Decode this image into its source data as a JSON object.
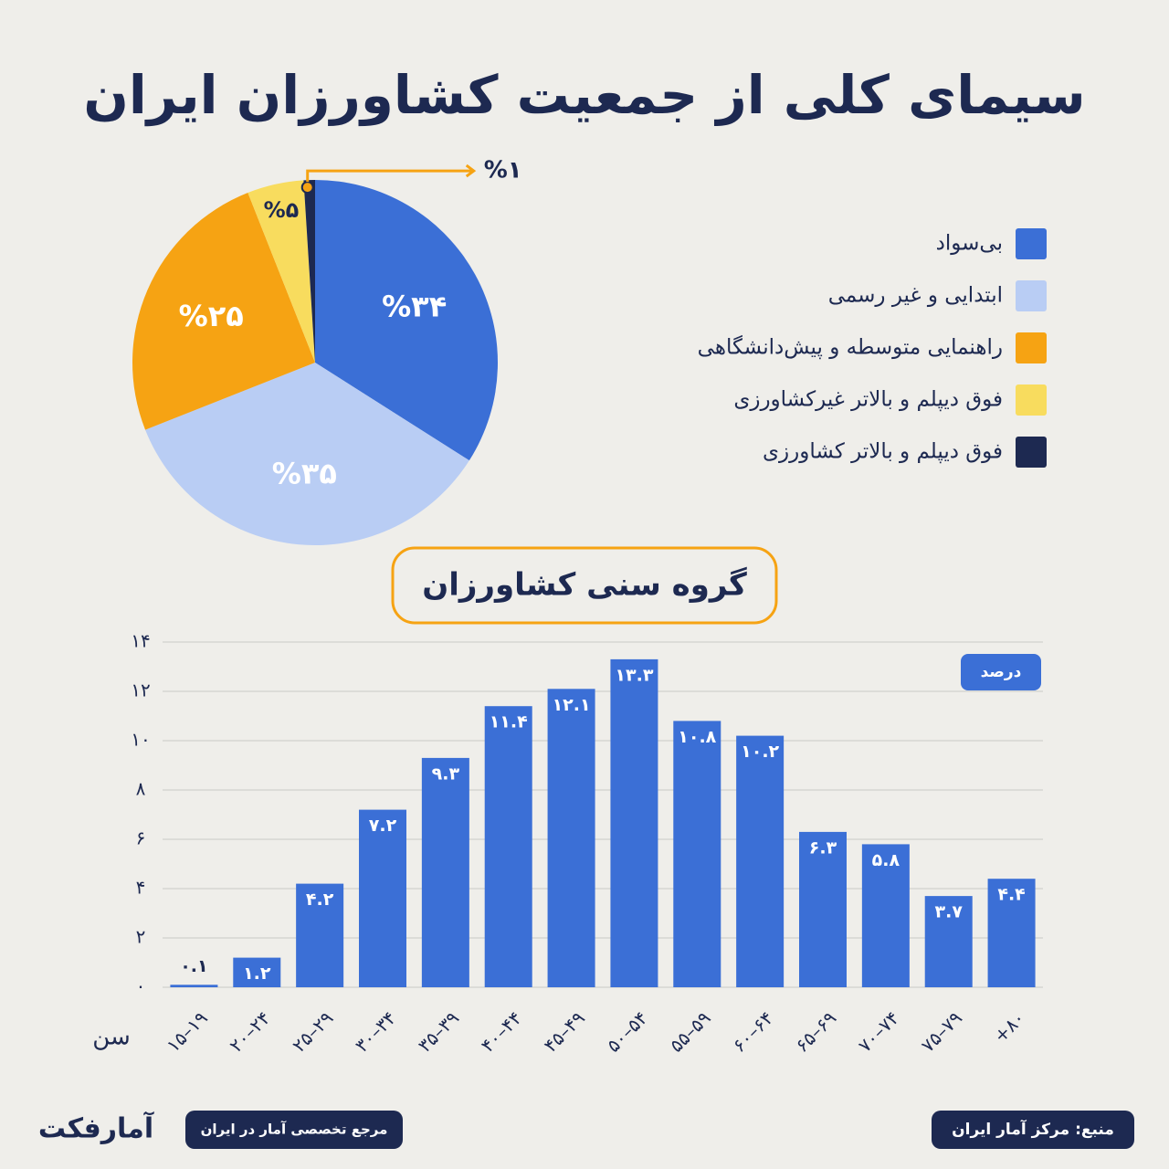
{
  "title": "سیمای کلی از جمعیت کشاورزان ایران",
  "chart_data": [
    {
      "type": "pie",
      "categories": [
        "بی‌سواد",
        "ابتدایی و غیر رسمی",
        "راهنمایی متوسطه و پیش‌دانشگاهی",
        "فوق دیپلم و بالاتر غیرکشاورزی",
        "فوق دیپلم و بالاتر کشاورزی"
      ],
      "values": [
        34,
        35,
        25,
        5,
        1
      ],
      "value_labels": [
        "%۳۴",
        "%۳۵",
        "%۲۵",
        "%۵",
        "%۱"
      ],
      "colors": [
        "#3b6fd6",
        "#b9cdf4",
        "#f6a313",
        "#f8dc5e",
        "#1d2951"
      ],
      "legend": "right"
    },
    {
      "type": "bar",
      "title": "گروه سنی کشاورزان",
      "y_label": "درصد",
      "x_label": "سن",
      "categories": [
        "۱۵–۱۹",
        "۲۰–۲۴",
        "۲۵–۲۹",
        "۳۰–۳۴",
        "۳۵–۳۹",
        "۴۰–۴۴",
        "۴۵–۴۹",
        "۵۰–۵۴",
        "۵۵–۵۹",
        "۶۰–۶۴",
        "۶۵–۶۹",
        "۷۰–۷۴",
        "۷۵–۷۹",
        "+۸۰"
      ],
      "values": [
        0.1,
        1.2,
        4.2,
        7.2,
        9.3,
        11.4,
        12.1,
        13.3,
        10.8,
        10.2,
        6.3,
        5.8,
        3.7,
        4.4
      ],
      "value_labels": [
        "۰.۱",
        "۱.۲",
        "۴.۲",
        "۷.۲",
        "۹.۳",
        "۱۱.۴",
        "۱۲.۱",
        "۱۳.۳",
        "۱۰.۸",
        "۱۰.۲",
        "۶.۳",
        "۵.۸",
        "۳.۷",
        "۴.۴"
      ],
      "color": "#3b6fd6",
      "ylim": [
        0,
        14
      ],
      "yticks": [
        {
          "value": 0,
          "label": "۰"
        },
        {
          "value": 2,
          "label": "۲"
        },
        {
          "value": 4,
          "label": "۴"
        },
        {
          "value": 6,
          "label": "۶"
        },
        {
          "value": 8,
          "label": "۸"
        },
        {
          "value": 10,
          "label": "۱۰"
        },
        {
          "value": 12,
          "label": "۱۲"
        },
        {
          "value": 14,
          "label": "۱۴"
        }
      ],
      "grid": true
    }
  ],
  "footer": {
    "source": "منبع: مرکز آمار ایران",
    "tagline": "مرجع تخصصی آمار در ایران",
    "logo": "آمارفکت"
  }
}
